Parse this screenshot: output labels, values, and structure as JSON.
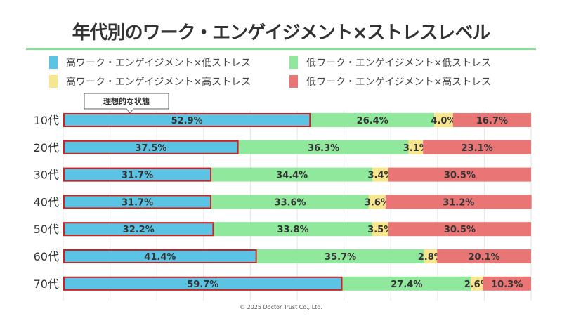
{
  "title": "年代別のワーク・エンゲイジメント×ストレスレベル",
  "footer": "© 2025 Doctor Trust Co., Ltd.",
  "callout": "理想的な状態",
  "chart_data": {
    "type": "bar",
    "orientation": "horizontal",
    "stacked": true,
    "title": "年代別のワーク・エンゲイジメント×ストレスレベル",
    "categories": [
      "10代",
      "20代",
      "30代",
      "40代",
      "50代",
      "60代",
      "70代"
    ],
    "series": [
      {
        "name": "高ワーク・エンゲイジメント×低ストレス",
        "color": "#5bc3e3",
        "values": [
          52.9,
          37.5,
          31.7,
          31.7,
          32.2,
          41.4,
          59.7
        ]
      },
      {
        "name": "低ワーク・エンゲイジメント×低ストレス",
        "color": "#90e89c",
        "values": [
          26.4,
          36.3,
          34.4,
          33.6,
          33.8,
          35.7,
          27.4
        ]
      },
      {
        "name": "高ワーク・エンゲイジメント×高ストレス",
        "color": "#f8e68c",
        "values": [
          4.0,
          3.1,
          3.4,
          3.6,
          3.5,
          2.8,
          2.6
        ]
      },
      {
        "name": "低ワーク・エンゲイジメント×高ストレス",
        "color": "#e97575",
        "values": [
          16.7,
          23.1,
          30.5,
          31.2,
          30.5,
          20.1,
          10.3
        ]
      }
    ],
    "xlim": [
      0,
      100
    ],
    "grid": true,
    "legend": "top",
    "highlight_color": "#cc2222"
  }
}
